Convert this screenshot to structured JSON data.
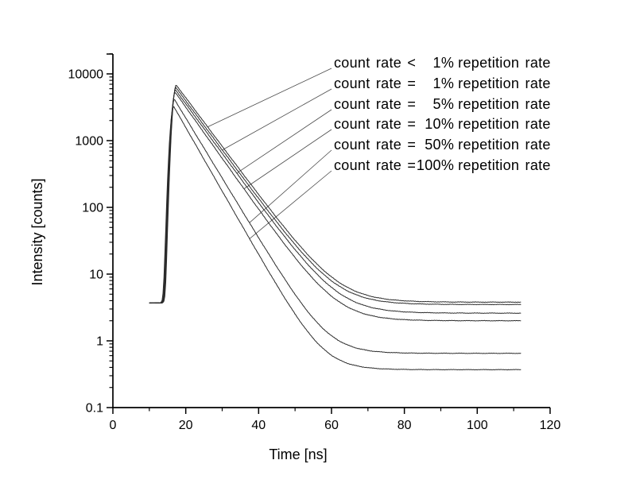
{
  "figure": {
    "background": "#ffffff",
    "axis_color": "#000000",
    "curve_color": "#2b2b2b",
    "leader_color": "#4a4a4a"
  },
  "chart_data": {
    "type": "line",
    "title": "",
    "xlabel": "Time [ns]",
    "ylabel": "Intensity [counts]",
    "grid": false,
    "legend_position": "top-right with leader lines pointing to curves",
    "x_axis": {
      "min": 0,
      "max": 120,
      "unit": "ns",
      "major_ticks": [
        0,
        20,
        40,
        60,
        80,
        100,
        120
      ],
      "minor_ticks": [
        10,
        30,
        50,
        70,
        90,
        110
      ]
    },
    "y_axis": {
      "scale": "log",
      "min": 0.1,
      "max": 20000,
      "major_ticks": [
        10000,
        1000,
        100,
        10,
        1,
        0.1
      ],
      "tick_labels": [
        "10000",
        "1000",
        "100",
        "10",
        "1",
        "0.1"
      ]
    },
    "curve_model": "pre-trigger baseline, sharp gaussian rise to peak at ~17 ns, single-exponential decay to flat background; intensity(t) = background + peak * exp(-(t - t_peak)/tau)",
    "series": [
      {
        "label": "count rate <      1% repetition rate",
        "label_prefix": "count rate <",
        "label_value": "1%",
        "label_suffix": "repetition rate",
        "peak_counts": 6800,
        "peak_time_ns": 17.4,
        "decay_tau_ns": 5.95,
        "background_counts": 3.8,
        "pre_trigger_counts": 3.7,
        "t_start_ns": 10,
        "t_end_ns": 112,
        "rise_sigma_ns": 0.75,
        "leader_time_ns": 26
      },
      {
        "label": "count rate =      1% repetition rate",
        "label_prefix": "count rate =",
        "label_value": "1%",
        "label_suffix": "repetition rate",
        "peak_counts": 6250,
        "peak_time_ns": 17.3,
        "decay_tau_ns": 5.89,
        "background_counts": 3.5,
        "pre_trigger_counts": 3.7,
        "t_start_ns": 10,
        "t_end_ns": 112,
        "rise_sigma_ns": 0.75,
        "leader_time_ns": 30
      },
      {
        "label": "count rate =      5% repetition rate",
        "label_prefix": "count rate =",
        "label_value": "5%",
        "label_suffix": "repetition rate",
        "peak_counts": 5750,
        "peak_time_ns": 17.2,
        "decay_tau_ns": 5.83,
        "background_counts": 2.6,
        "pre_trigger_counts": 3.7,
        "t_start_ns": 10,
        "t_end_ns": 112,
        "rise_sigma_ns": 0.75,
        "leader_time_ns": 34
      },
      {
        "label": "count rate =    10% repetition rate",
        "label_prefix": "count rate =",
        "label_value": "10%",
        "label_suffix": "repetition rate",
        "peak_counts": 5300,
        "peak_time_ns": 17.1,
        "decay_tau_ns": 5.65,
        "background_counts": 2.0,
        "pre_trigger_counts": 3.7,
        "t_start_ns": 10,
        "t_end_ns": 112,
        "rise_sigma_ns": 0.75,
        "leader_time_ns": 36
      },
      {
        "label": "count rate =    50% repetition rate",
        "label_prefix": "count rate =",
        "label_value": "50%",
        "label_suffix": "repetition rate",
        "peak_counts": 4150,
        "peak_time_ns": 16.9,
        "decay_tau_ns": 4.82,
        "background_counts": 0.65,
        "pre_trigger_counts": 3.7,
        "t_start_ns": 10,
        "t_end_ns": 112,
        "rise_sigma_ns": 0.75,
        "leader_time_ns": 37.5
      },
      {
        "label": "count rate = 100% repetition rate",
        "label_prefix": "count rate =",
        "label_value": "100%",
        "label_suffix": "repetition rate",
        "peak_counts": 3250,
        "peak_time_ns": 16.7,
        "decay_tau_ns": 4.55,
        "background_counts": 0.37,
        "pre_trigger_counts": 3.7,
        "t_start_ns": 10,
        "t_end_ns": 112,
        "rise_sigma_ns": 0.75,
        "leader_time_ns": 37.5
      }
    ]
  }
}
